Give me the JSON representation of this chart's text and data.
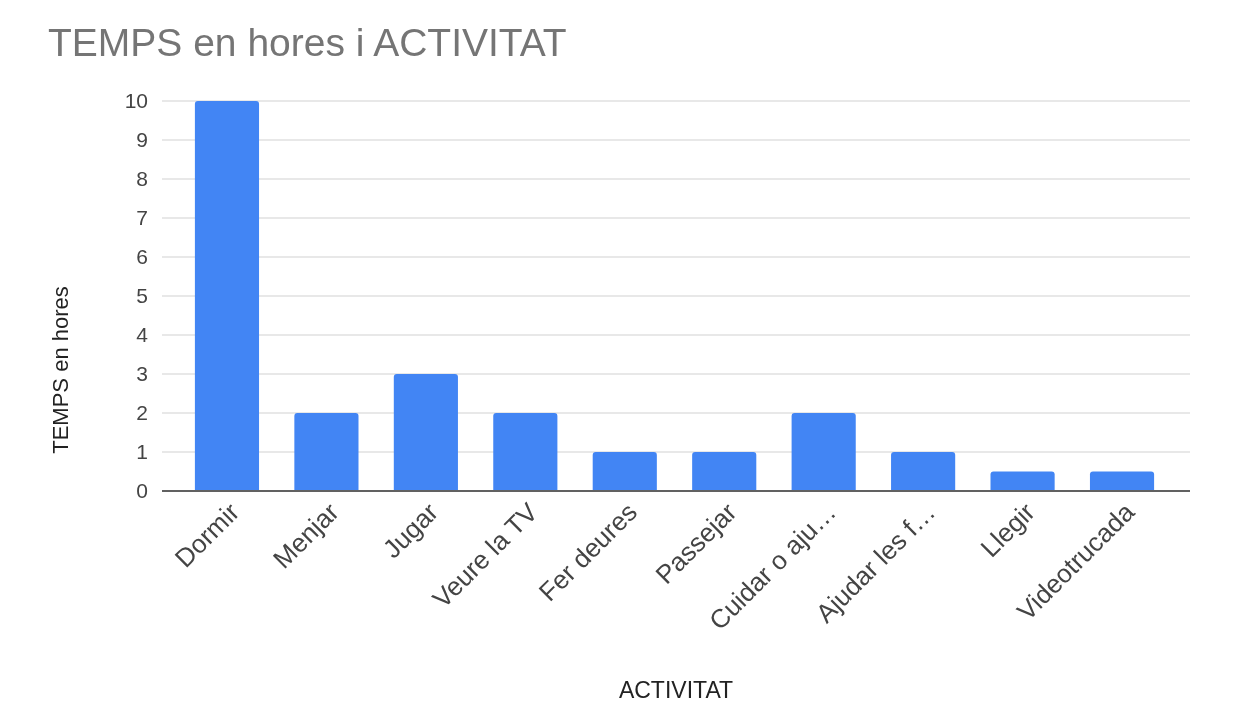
{
  "chart_data": {
    "type": "bar",
    "title": "TEMPS en hores i ACTIVITAT",
    "xlabel": "ACTIVITAT",
    "ylabel": "TEMPS en hores",
    "categories": [
      "Dormir",
      "Menjar",
      "Jugar",
      "Veure la TV",
      "Fer deures",
      "Passejar",
      "Cuidar o aju…",
      "Ajudar les f…",
      "Llegir",
      "Videotrucada"
    ],
    "values": [
      10,
      2,
      3,
      2,
      1,
      1,
      2,
      1,
      0.5,
      0.5
    ],
    "color": "#4285f4",
    "ylim": [
      0,
      10
    ],
    "yticks": [
      0,
      1,
      2,
      3,
      4,
      5,
      6,
      7,
      8,
      9,
      10
    ],
    "grid": true
  }
}
